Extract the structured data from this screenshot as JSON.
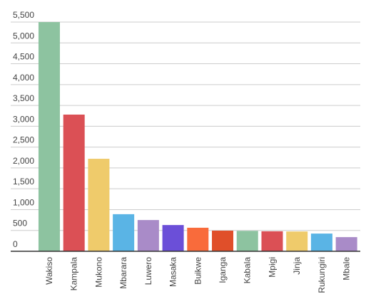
{
  "chart_data": {
    "type": "bar",
    "categories": [
      "Wakiso",
      "Kampala",
      "Mukono",
      "Mbarara",
      "Luwero",
      "Masaka",
      "Buikwe",
      "Iganga",
      "Kabala",
      "Mpigi",
      "Jinja",
      "Rukungiri",
      "Mbale"
    ],
    "values": [
      5500,
      3280,
      2220,
      890,
      750,
      630,
      565,
      495,
      490,
      480,
      475,
      425,
      340
    ],
    "colors": [
      "#8dc3a0",
      "#db5055",
      "#efcb6b",
      "#5ab4e5",
      "#a98bc8",
      "#6b4fd8",
      "#f96b3b",
      "#e04f2a",
      "#8dc3a0",
      "#db5055",
      "#efcb6b",
      "#5ab4e5",
      "#a98bc8"
    ],
    "ylim": [
      0,
      5500
    ],
    "yticks": [
      0,
      500,
      {
        "value": 1000,
        "label": "1,000"
      },
      {
        "value": 1500,
        "label": "1,500"
      },
      {
        "value": 2000,
        "label": "2,000"
      },
      {
        "value": 2500,
        "label": "2,500"
      },
      {
        "value": 3000,
        "label": "3,000"
      },
      {
        "value": 3500,
        "label": "3,500"
      },
      {
        "value": 4000,
        "label": "4,000"
      },
      {
        "value": 4500,
        "label": "4,500"
      },
      {
        "value": 5000,
        "label": "5,000"
      },
      {
        "value": 5500,
        "label": "5,500"
      }
    ],
    "grid": true
  }
}
